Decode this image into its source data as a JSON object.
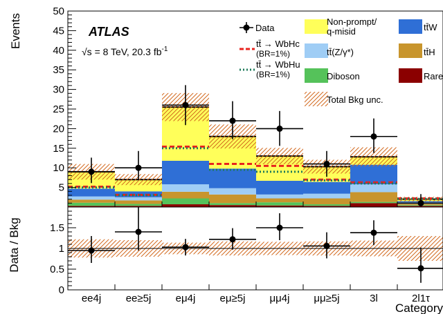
{
  "chart_data": [
    {
      "type": "bar",
      "stacked": true,
      "categories": [
        "ee4j",
        "ee≥5j",
        "eμ4j",
        "eμ≥5j",
        "μμ4j",
        "μμ≥5j",
        "3l",
        "2l1τ"
      ],
      "ylabel": "Events",
      "ylim": [
        0,
        50
      ],
      "yticks": [
        "5",
        "10",
        "15",
        "20",
        "25",
        "30",
        "35",
        "40",
        "45",
        "50"
      ],
      "experiment": "ATLAS",
      "energy_label": "√s = 8 TeV, 20.3 fb",
      "energy_label_sup": "-1",
      "background_series": [
        {
          "name": "Rare",
          "color": "#8b0000",
          "values": [
            0.3,
            0.3,
            0.7,
            0.5,
            0.4,
            0.3,
            1.0,
            0.3
          ]
        },
        {
          "name": "Diboson",
          "color": "#55c25a",
          "values": [
            0.8,
            0.5,
            1.5,
            0.5,
            0.8,
            0.4,
            0.3,
            0.2
          ]
        },
        {
          "name": "tt̄H",
          "color": "#c8952d",
          "values": [
            0.8,
            0.9,
            1.7,
            2.2,
            1.0,
            1.5,
            2.5,
            0.3
          ]
        },
        {
          "name": "tt̄(Z/γ*)",
          "color": "#9fcdf5",
          "values": [
            0.8,
            0.8,
            1.9,
            1.6,
            1.0,
            1.2,
            2.0,
            0.4
          ]
        },
        {
          "name": "tt̄W",
          "color": "#2f6fd6",
          "values": [
            2.0,
            1.5,
            6.0,
            5.0,
            3.5,
            3.0,
            5.0,
            0.3
          ]
        },
        {
          "name": "Non-prompt/\nq-misid",
          "color": "#ffff5a",
          "values": [
            4.3,
            3.0,
            13.7,
            8.2,
            6.3,
            3.9,
            2.0,
            0.5
          ]
        }
      ],
      "signal_series": [
        {
          "name": "tt̄ → WbHc",
          "name_line2": "(BR=1%)",
          "color": "#e8231e",
          "style": "dashed",
          "values": [
            5.2,
            3.1,
            15.4,
            11.0,
            10.5,
            7.0,
            6.3,
            2.2
          ]
        },
        {
          "name": "tt̄ → WbHu",
          "name_line2": "(BR=1%)",
          "color": "#1e7a5a",
          "style": "dotted",
          "values": [
            5.0,
            3.0,
            15.0,
            9.5,
            9.0,
            6.8,
            6.0,
            2.1
          ]
        }
      ],
      "total_bkg_unc": {
        "name": "Total Bkg unc.",
        "color": "#d2691e",
        "relative": [
          0.22,
          0.2,
          0.14,
          0.17,
          0.16,
          0.17,
          0.19,
          0.3
        ]
      },
      "data": {
        "name": "Data",
        "values": [
          9,
          10,
          26,
          22,
          20,
          11,
          18,
          1
        ],
        "err_up": [
          3.6,
          4.3,
          5.1,
          5.0,
          4.5,
          3.3,
          4.6,
          2.3
        ],
        "err_down": [
          2.9,
          3.1,
          5.1,
          4.7,
          4.4,
          3.3,
          4.2,
          0.8
        ]
      }
    },
    {
      "type": "scatter",
      "categories": [
        "ee4j",
        "ee≥5j",
        "eμ4j",
        "eμ≥5j",
        "μμ4j",
        "μμ≥5j",
        "3l",
        "2l1τ"
      ],
      "xlabel": "Category",
      "ylabel": "Data / Bkg",
      "ylim": [
        0,
        2
      ],
      "yticks": [
        "0",
        "0.5",
        "1",
        "1.5"
      ],
      "reference_line": 1,
      "ratio": [
        0.95,
        1.4,
        1.03,
        1.22,
        1.5,
        1.06,
        1.38,
        0.52
      ],
      "ratio_err_up": [
        0.35,
        0.6,
        0.2,
        0.27,
        0.35,
        0.33,
        0.3,
        0.5
      ],
      "ratio_err_down": [
        0.3,
        0.45,
        0.2,
        0.25,
        0.3,
        0.3,
        0.3,
        0.35
      ]
    }
  ]
}
